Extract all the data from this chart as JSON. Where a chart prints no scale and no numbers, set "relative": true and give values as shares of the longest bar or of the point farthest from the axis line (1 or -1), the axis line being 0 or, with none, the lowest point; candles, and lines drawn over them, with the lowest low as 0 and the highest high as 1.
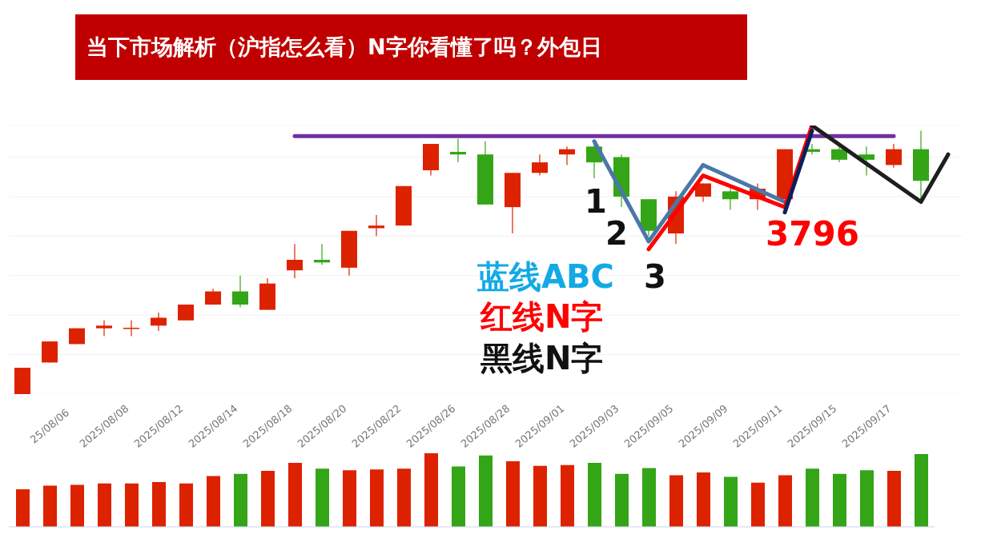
{
  "chart_data": [
    {
      "type": "candlestick",
      "title": "当下市场解析（沪指怎么看）N字你看懂了吗？外包日",
      "relative": true,
      "grid": true,
      "categories": [
        null,
        null,
        null,
        null,
        null,
        null,
        null,
        null,
        null,
        null,
        null,
        null,
        null,
        null,
        null,
        null,
        null,
        null,
        null,
        null,
        null,
        null,
        null,
        null,
        null,
        null,
        null,
        null,
        null,
        null,
        null,
        null,
        null,
        null,
        null
      ],
      "ohlc": [
        [
          0,
          0.1,
          0,
          0.1
        ],
        [
          0.12,
          0.2,
          0.12,
          0.2
        ],
        [
          0.19,
          0.25,
          0.19,
          0.25
        ],
        [
          0.25,
          0.28,
          0.22,
          0.26
        ],
        [
          0.249,
          0.28,
          0.22,
          0.252
        ],
        [
          0.26,
          0.31,
          0.24,
          0.29
        ],
        [
          0.28,
          0.34,
          0.28,
          0.34
        ],
        [
          0.34,
          0.4,
          0.34,
          0.39
        ],
        [
          0.39,
          0.45,
          0.33,
          0.34
        ],
        [
          0.32,
          0.44,
          0.32,
          0.42
        ],
        [
          0.47,
          0.57,
          0.44,
          0.51
        ],
        [
          0.51,
          0.57,
          0.49,
          0.5
        ],
        [
          0.48,
          0.62,
          0.45,
          0.62
        ],
        [
          0.63,
          0.68,
          0.6,
          0.64
        ],
        [
          0.64,
          0.79,
          0.64,
          0.79
        ],
        [
          0.85,
          0.95,
          0.83,
          0.95
        ],
        [
          0.92,
          0.97,
          0.88,
          0.91
        ],
        [
          0.91,
          0.96,
          0.72,
          0.72
        ],
        [
          0.71,
          0.84,
          0.61,
          0.84
        ],
        [
          0.84,
          0.91,
          0.83,
          0.88
        ],
        [
          0.91,
          0.94,
          0.87,
          0.93
        ],
        [
          0.94,
          0.95,
          0.82,
          0.88
        ],
        [
          0.9,
          0.91,
          0.71,
          0.75
        ],
        [
          0.74,
          0.74,
          0.6,
          0.62
        ],
        [
          0.61,
          0.77,
          0.57,
          0.75
        ],
        [
          0.75,
          0.8,
          0.73,
          0.8
        ],
        [
          0.77,
          0.79,
          0.7,
          0.74
        ],
        [
          0.74,
          0.8,
          0.7,
          0.78
        ],
        [
          0.74,
          0.93,
          0.74,
          0.93
        ],
        [
          0.93,
          0.95,
          0.91,
          0.92
        ],
        [
          0.93,
          0.94,
          0.88,
          0.89
        ],
        [
          0.91,
          0.94,
          0.83,
          0.89
        ],
        [
          0.87,
          0.95,
          0.86,
          0.93
        ],
        [
          0.93,
          1,
          0.74,
          0.81
        ],
        null
      ],
      "colors": [
        "#dd2200",
        "#dd2200",
        "#dd2200",
        "#dd2200",
        "#dd2200",
        "#dd2200",
        "#dd2200",
        "#dd2200",
        "#33a516",
        "#dd2200",
        "#dd2200",
        "#33a516",
        "#dd2200",
        "#dd2200",
        "#dd2200",
        "#dd2200",
        "#33a516",
        "#33a516",
        "#dd2200",
        "#dd2200",
        "#dd2200",
        "#33a516",
        "#33a516",
        "#33a516",
        "#dd2200",
        "#dd2200",
        "#33a516",
        "#dd2200",
        "#dd2200",
        "#33a516",
        "#33a516",
        "#33a516",
        "#dd2200",
        "#33a516",
        null
      ],
      "series": [
        {
          "type": "line",
          "color": "#7030a0",
          "values": [
            null,
            null,
            null,
            null,
            null,
            null,
            null,
            null,
            null,
            null,
            0.98,
            0.98,
            0.98,
            0.98,
            0.98,
            0.98,
            0.98,
            0.98,
            0.98,
            0.98,
            0.98,
            0.98,
            0.98,
            0.98,
            0.98,
            0.98,
            0.98,
            0.98,
            0.98,
            0.98,
            0.98,
            0.98,
            0.98,
            null,
            null
          ]
        },
        {
          "type": "line",
          "color": "#4a78a6",
          "values": [
            null,
            null,
            null,
            null,
            null,
            null,
            null,
            null,
            null,
            null,
            null,
            null,
            null,
            null,
            null,
            null,
            null,
            null,
            null,
            null,
            null,
            0.96,
            null,
            0.58,
            null,
            0.87,
            null,
            null,
            0.73,
            null,
            null,
            null,
            null,
            null,
            null
          ]
        },
        {
          "type": "line",
          "color": "#ff0000",
          "values": [
            null,
            null,
            null,
            null,
            null,
            null,
            null,
            null,
            null,
            null,
            null,
            null,
            null,
            null,
            null,
            null,
            null,
            null,
            null,
            null,
            null,
            null,
            null,
            0.55,
            null,
            0.83,
            null,
            null,
            0.71,
            1.02,
            null,
            null,
            null,
            null,
            null
          ]
        },
        {
          "type": "line",
          "color": "#0b1f5c",
          "values": [
            null,
            null,
            null,
            null,
            null,
            null,
            null,
            null,
            null,
            null,
            null,
            null,
            null,
            null,
            null,
            null,
            null,
            null,
            null,
            null,
            null,
            null,
            null,
            null,
            null,
            null,
            null,
            null,
            0.69,
            1.0,
            null,
            null,
            null,
            null,
            null
          ]
        },
        {
          "type": "line",
          "color": "#1e1e1e",
          "values": [
            null,
            null,
            null,
            null,
            null,
            null,
            null,
            null,
            null,
            null,
            null,
            null,
            null,
            null,
            null,
            null,
            null,
            null,
            null,
            null,
            null,
            null,
            null,
            null,
            null,
            null,
            null,
            null,
            null,
            1.02,
            null,
            null,
            null,
            0.73,
            0.91
          ]
        }
      ],
      "annotations": [
        "1",
        "2",
        "3",
        "3796",
        "蓝线ABC",
        "红线N字",
        "黑线N字"
      ]
    },
    {
      "type": "bar",
      "relative": true,
      "categories": [
        null,
        "25/08/06",
        null,
        "2025/08/08",
        null,
        "2025/08/12",
        null,
        "2025/08/14",
        null,
        "2025/08/18",
        null,
        "2025/08/20",
        null,
        "2025/08/22",
        null,
        "2025/08/26",
        null,
        "2025/08/28",
        null,
        "2025/09/01",
        null,
        "2025/09/03",
        null,
        "2025/09/05",
        null,
        "2025/09/09",
        null,
        "2025/09/11",
        null,
        "2025/09/15",
        null,
        "2025/09/17",
        null,
        null
      ],
      "values": [
        0.51,
        0.56,
        0.57,
        0.59,
        0.59,
        0.61,
        0.59,
        0.69,
        0.72,
        0.76,
        0.87,
        0.79,
        0.77,
        0.78,
        0.79,
        1.0,
        0.82,
        0.97,
        0.89,
        0.83,
        0.84,
        0.87,
        0.72,
        0.8,
        0.7,
        0.74,
        0.68,
        0.6,
        0.7,
        0.79,
        0.72,
        0.77,
        0.76,
        0.99
      ],
      "colors": [
        "#dd2200",
        "#dd2200",
        "#dd2200",
        "#dd2200",
        "#dd2200",
        "#dd2200",
        "#dd2200",
        "#dd2200",
        "#33a516",
        "#dd2200",
        "#dd2200",
        "#33a516",
        "#dd2200",
        "#dd2200",
        "#dd2200",
        "#dd2200",
        "#33a516",
        "#33a516",
        "#dd2200",
        "#dd2200",
        "#dd2200",
        "#33a516",
        "#33a516",
        "#33a516",
        "#dd2200",
        "#dd2200",
        "#33a516",
        "#dd2200",
        "#dd2200",
        "#33a516",
        "#33a516",
        "#33a516",
        "#dd2200",
        "#33a516"
      ]
    }
  ]
}
